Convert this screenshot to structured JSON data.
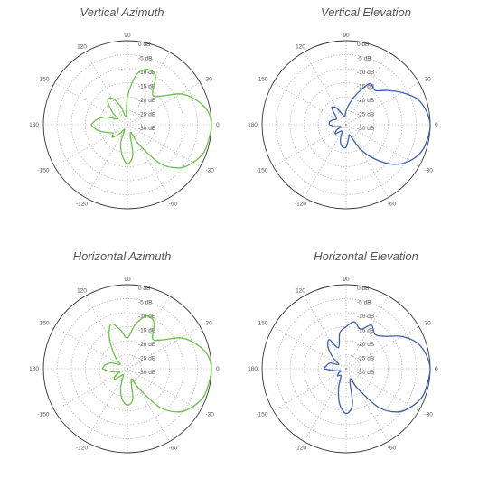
{
  "chart_data": [
    {
      "type": "polar",
      "title": "Vertical Azimuth",
      "angle_ticks": [
        "90",
        "30",
        "0",
        "-30",
        "-60",
        "-120",
        "-150",
        "180",
        "150",
        "120"
      ],
      "radial_ticks": [
        "0 dB",
        "-5 dB",
        "-10 dB",
        "-15 dB",
        "-20 dB",
        "-25 dB",
        "-30 dB"
      ],
      "r_range_db": [
        -30,
        0
      ],
      "grid": true,
      "line_color": "#6cc04a",
      "series": [
        {
          "theta": [
            -180,
            -170,
            -160,
            -150,
            -140,
            -130,
            -120,
            -110,
            -100,
            -90,
            -80,
            -70,
            -60,
            -50,
            -40,
            -30,
            -20,
            -10,
            0,
            10,
            20,
            30,
            40,
            50,
            60,
            70,
            80,
            90,
            100,
            110,
            120,
            130,
            140,
            150,
            160,
            170,
            180
          ],
          "gain_db": [
            -17,
            -19,
            -22,
            -24,
            -23,
            -26,
            -28,
            -23,
            -19,
            -16,
            -19,
            -27,
            -22,
            -12,
            -6,
            -3,
            -1,
            -0.5,
            0,
            -1,
            -4,
            -8,
            -14,
            -16,
            -10,
            -9,
            -12,
            -20,
            -27,
            -23,
            -19,
            -19,
            -23,
            -26,
            -22,
            -19,
            -17
          ]
        }
      ]
    },
    {
      "type": "polar",
      "title": "Vertical Elevation",
      "angle_ticks": [
        "90",
        "30",
        "0",
        "-30",
        "-60",
        "-120",
        "-150",
        "180",
        "150",
        "120"
      ],
      "radial_ticks": [
        "0 dB",
        "-5 dB",
        "-10 dB",
        "-15 dB",
        "-20 dB",
        "-25 dB",
        "-30 dB"
      ],
      "r_range_db": [
        -30,
        0
      ],
      "grid": true,
      "line_color": "#3b5fb0",
      "series": [
        {
          "theta": [
            -180,
            -170,
            -160,
            -150,
            -140,
            -130,
            -120,
            -110,
            -100,
            -90,
            -80,
            -70,
            -60,
            -50,
            -40,
            -30,
            -20,
            -10,
            0,
            10,
            20,
            30,
            40,
            50,
            60,
            70,
            80,
            90,
            100,
            110,
            120,
            130,
            140,
            150,
            160,
            170,
            180
          ],
          "gain_db": [
            -24,
            -26,
            -28,
            -26,
            -25,
            -27,
            -27,
            -24,
            -22,
            -22,
            -25,
            -26,
            -20,
            -14,
            -8,
            -4,
            -1.5,
            -0.5,
            0,
            -1,
            -3,
            -7,
            -11,
            -14,
            -13,
            -18,
            -22,
            -25,
            -27,
            -26,
            -23,
            -22,
            -25,
            -26,
            -25,
            -24,
            -24
          ]
        }
      ]
    },
    {
      "type": "polar",
      "title": "Horizontal Azimuth",
      "angle_ticks": [
        "90",
        "30",
        "0",
        "-30",
        "-60",
        "-120",
        "-150",
        "180",
        "150",
        "120"
      ],
      "radial_ticks": [
        "0 dB",
        "-5 dB",
        "-10 dB",
        "-15 dB",
        "-20 dB",
        "-25 dB",
        "-30 dB"
      ],
      "r_range_db": [
        -30,
        0
      ],
      "grid": true,
      "line_color": "#6cc04a",
      "series": [
        {
          "theta": [
            -180,
            -170,
            -160,
            -150,
            -140,
            -130,
            -120,
            -110,
            -100,
            -90,
            -80,
            -70,
            -60,
            -50,
            -40,
            -30,
            -20,
            -10,
            0,
            10,
            20,
            30,
            40,
            50,
            60,
            70,
            80,
            90,
            100,
            110,
            120,
            130,
            140,
            150,
            160,
            170,
            180
          ],
          "gain_db": [
            -21,
            -24,
            -27,
            -25,
            -24,
            -27,
            -27,
            -23,
            -19,
            -17,
            -19,
            -26,
            -22,
            -12,
            -6,
            -3,
            -1,
            -0.5,
            0,
            -1,
            -4,
            -8,
            -14,
            -16,
            -11,
            -10,
            -14,
            -19,
            -16,
            -13,
            -17,
            -22,
            -25,
            -27,
            -24,
            -22,
            -21
          ]
        }
      ]
    },
    {
      "type": "polar",
      "title": "Horizontal Elevation",
      "angle_ticks": [
        "90",
        "30",
        "0",
        "-30",
        "-60",
        "-120",
        "-150",
        "180",
        "150",
        "120"
      ],
      "radial_ticks": [
        "0 dB",
        "-5 dB",
        "-10 dB",
        "-15 dB",
        "-20 dB",
        "-25 dB",
        "-30 dB"
      ],
      "r_range_db": [
        -30,
        0
      ],
      "grid": true,
      "line_color": "#3b5fb0",
      "series": [
        {
          "theta": [
            -180,
            -170,
            -160,
            -150,
            -140,
            -130,
            -120,
            -110,
            -100,
            -90,
            -80,
            -70,
            -60,
            -50,
            -40,
            -30,
            -20,
            -10,
            0,
            10,
            20,
            30,
            40,
            50,
            60,
            70,
            80,
            90,
            100,
            110,
            120,
            130,
            140,
            150,
            160,
            170,
            180
          ],
          "gain_db": [
            -22,
            -26,
            -28,
            -27,
            -26,
            -27,
            -26,
            -22,
            -17,
            -14,
            -17,
            -26,
            -22,
            -12,
            -6,
            -3,
            -1,
            -0.5,
            0,
            -1,
            -3,
            -7,
            -12,
            -14,
            -12,
            -15,
            -13,
            -15,
            -17,
            -22,
            -18,
            -20,
            -24,
            -27,
            -24,
            -23,
            -22
          ]
        }
      ]
    }
  ]
}
